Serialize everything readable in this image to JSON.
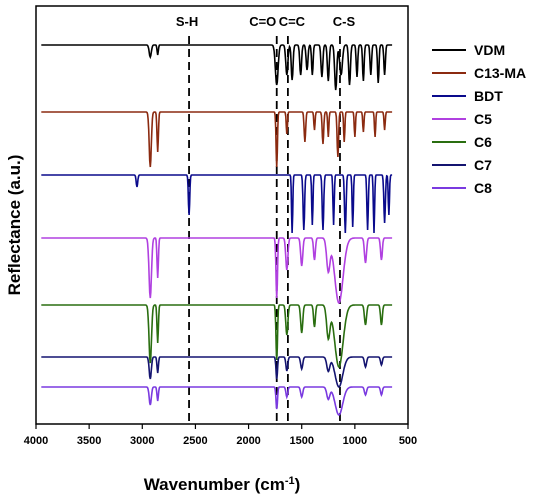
{
  "chart_data": {
    "type": "line",
    "xlabel": "Wavenumber (cm",
    "xlabel_sup": "-1",
    "xlabel_tail": ")",
    "ylabel": "Reflectance (a.u.)",
    "xlim": [
      4000,
      500
    ],
    "x_ticks": [
      4000,
      3500,
      3000,
      2500,
      2000,
      1500,
      1000,
      500
    ],
    "x_tick_labels": [
      "4000",
      "3500",
      "3000",
      "2500",
      "2000",
      "1500",
      "1000",
      "500"
    ],
    "grid": false,
    "legend_position": "top-right",
    "reference_lines": [
      {
        "label": "S-H",
        "x": 2560
      },
      {
        "label": "C=O",
        "x": 1735
      },
      {
        "label": "C=C",
        "x": 1630
      },
      {
        "label": "C-S",
        "x": 1140
      }
    ],
    "series": [
      {
        "name": "VDM",
        "color": "#000000"
      },
      {
        "name": "C13-MA",
        "color": "#8B2A10"
      },
      {
        "name": "BDT",
        "color": "#0a0a8c"
      },
      {
        "name": "C5",
        "color": "#b040e0"
      },
      {
        "name": "C6",
        "color": "#2a6e10"
      },
      {
        "name": "C7",
        "color": "#141470"
      },
      {
        "name": "C8",
        "color": "#7a3ae0"
      }
    ]
  }
}
